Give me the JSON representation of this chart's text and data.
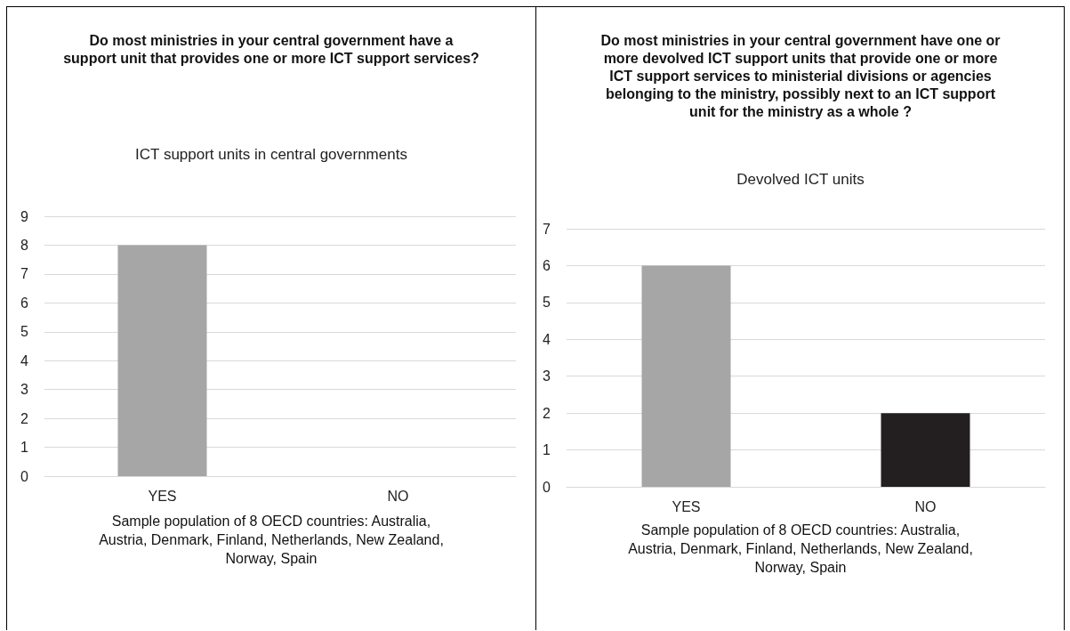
{
  "chart_data": [
    {
      "type": "bar",
      "title": "Do most ministries in your central government have a support unit that provides one or more ICT support services?",
      "subtitle": "ICT support units in central governments",
      "categories": [
        "YES",
        "NO"
      ],
      "values": [
        8,
        0
      ],
      "colors": [
        "#a6a6a6",
        "#a6a6a6"
      ],
      "ylim": [
        0,
        9
      ],
      "yticks": [
        0,
        1,
        2,
        3,
        4,
        5,
        6,
        7,
        8,
        9
      ],
      "grid": "y",
      "annotations": [
        "Sample population of 8 OECD countries: Australia, Austria, Denmark, Finland, Netherlands, New Zealand, Norway, Spain"
      ]
    },
    {
      "type": "bar",
      "title": "Do most ministries in your central government have one or more devolved ICT support units that provide one or more ICT support services to ministerial divisions or agencies belonging to the ministry, possibly next to an ICT support unit for the ministry as a whole ?",
      "subtitle": "Devolved ICT units",
      "categories": [
        "YES",
        "NO"
      ],
      "values": [
        6,
        2
      ],
      "colors": [
        "#a6a6a6",
        "#231f20"
      ],
      "ylim": [
        0,
        7
      ],
      "yticks": [
        0,
        1,
        2,
        3,
        4,
        5,
        6,
        7
      ],
      "grid": "y",
      "annotations": [
        "Sample population of 8 OECD countries: Australia, Austria, Denmark, Finland, Netherlands, New Zealand, Norway, Spain"
      ]
    }
  ]
}
